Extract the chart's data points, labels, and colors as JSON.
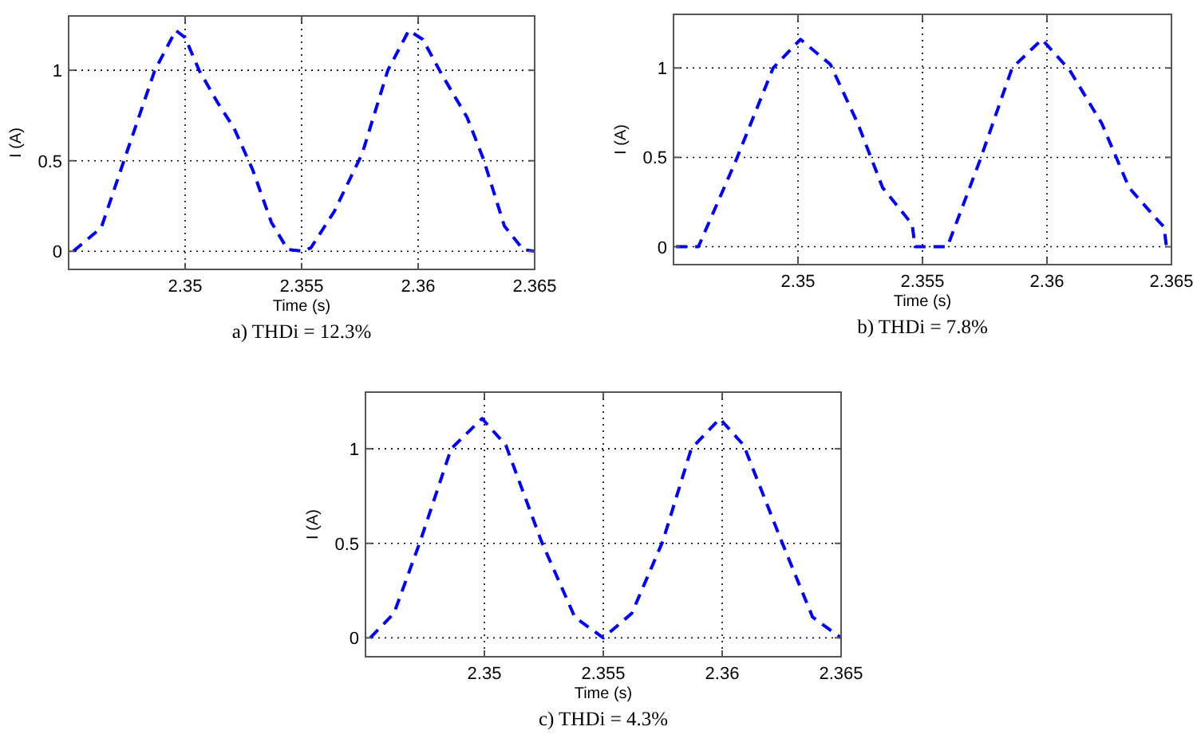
{
  "chart_data": [
    {
      "type": "line",
      "title": "a) THDi = 12.3%",
      "xlabel": "Time (s)",
      "ylabel": "I (A)",
      "xlim": [
        2.345,
        2.365
      ],
      "ylim": [
        -0.1,
        1.3
      ],
      "xticks": [
        2.35,
        2.355,
        2.36,
        2.365
      ],
      "yticks": [
        0,
        0.5,
        1
      ],
      "grid": true,
      "line_style": "dashed",
      "marker": "none",
      "series": [
        {
          "color": "#0000ff",
          "x": [
            2.3452,
            2.3464,
            2.3474,
            2.3487,
            2.3496,
            2.35,
            2.3506,
            2.3514,
            2.3521,
            2.3529,
            2.3537,
            2.3544,
            2.3551,
            2.3554,
            2.3564,
            2.3576,
            2.3587,
            2.3596,
            2.3602,
            2.361,
            2.3621,
            2.3628,
            2.3637,
            2.3645,
            2.365
          ],
          "values": [
            0,
            0.13,
            0.51,
            1.0,
            1.22,
            1.18,
            1.0,
            0.82,
            0.68,
            0.45,
            0.16,
            0.01,
            0,
            0.02,
            0.22,
            0.54,
            1.0,
            1.22,
            1.17,
            0.98,
            0.74,
            0.51,
            0.14,
            0.01,
            0
          ]
        }
      ]
    },
    {
      "type": "line",
      "title": "b) THDi = 7.8%",
      "xlabel": "Time (s)",
      "ylabel": "I (A)",
      "xlim": [
        2.345,
        2.365
      ],
      "ylim": [
        -0.1,
        1.3
      ],
      "xticks": [
        2.35,
        2.355,
        2.36,
        2.365
      ],
      "yticks": [
        0,
        0.5,
        1
      ],
      "grid": true,
      "line_style": "dashed",
      "marker": "none",
      "series": [
        {
          "color": "#0000ff",
          "x": [
            2.3451,
            2.346,
            2.3475,
            2.349,
            2.3501,
            2.3513,
            2.3524,
            2.3534,
            2.3545,
            2.3546,
            2.3547,
            2.356,
            2.3573,
            2.3586,
            2.3598,
            2.3609,
            2.3622,
            2.3633,
            2.3645,
            2.3647,
            2.3648,
            2.365
          ],
          "values": [
            0,
            0,
            0.48,
            1.0,
            1.16,
            1.02,
            0.69,
            0.33,
            0.14,
            0.11,
            0,
            0,
            0.48,
            1.0,
            1.16,
            0.99,
            0.69,
            0.33,
            0.14,
            0.11,
            0,
            0
          ]
        }
      ]
    },
    {
      "type": "line",
      "title": "c) THDi = 4.3%",
      "xlabel": "Time (s)",
      "ylabel": "I (A)",
      "xlim": [
        2.345,
        2.365
      ],
      "ylim": [
        -0.1,
        1.3
      ],
      "xticks": [
        2.35,
        2.355,
        2.36,
        2.365
      ],
      "yticks": [
        0,
        0.5,
        1
      ],
      "grid": true,
      "line_style": "dashed",
      "marker": "none",
      "series": [
        {
          "color": "#0000ff",
          "x": [
            2.3452,
            2.3462,
            2.3473,
            2.3486,
            2.3499,
            2.3509,
            2.3524,
            2.3538,
            2.355,
            2.3562,
            2.3575,
            2.3587,
            2.3599,
            2.3609,
            2.3625,
            2.3638,
            2.365
          ],
          "values": [
            0,
            0.13,
            0.51,
            1.0,
            1.16,
            1.02,
            0.51,
            0.11,
            0,
            0.13,
            0.51,
            1.0,
            1.16,
            1.02,
            0.51,
            0.11,
            0
          ]
        }
      ]
    }
  ]
}
